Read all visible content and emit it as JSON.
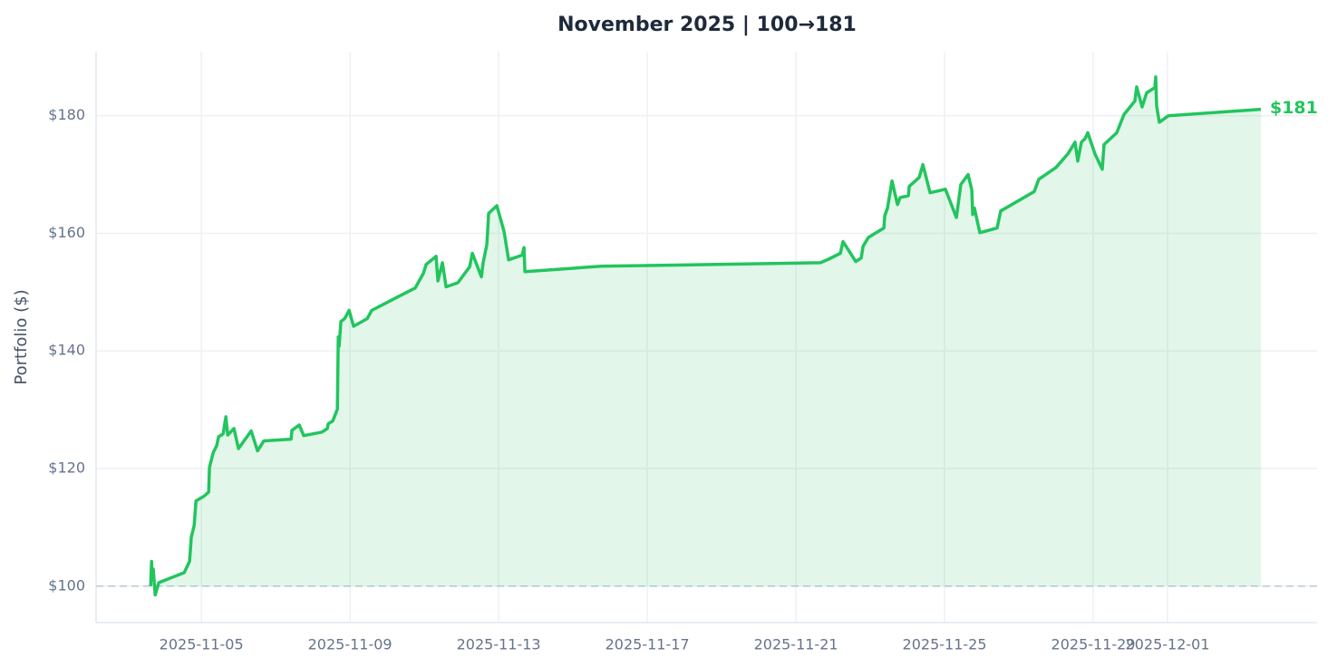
{
  "chart_data": {
    "type": "line",
    "title": "November 2025 | 100→181",
    "y_label": "Portfolio ($)",
    "xlim": [
      "2025-11-02T04:00",
      "2025-12-05T00:35"
    ],
    "xticks": [
      "2025-11-05",
      "2025-11-09",
      "2025-11-13",
      "2025-11-17",
      "2025-11-21",
      "2025-11-25",
      "2025-11-29",
      "2025-12-01"
    ],
    "ylim": [
      93.8,
      190.9
    ],
    "yticks": [
      {
        "value": 100,
        "label": "$100"
      },
      {
        "value": 120,
        "label": "$120"
      },
      {
        "value": 140,
        "label": "$140"
      },
      {
        "value": 160,
        "label": "$160"
      },
      {
        "value": 180,
        "label": "$180"
      }
    ],
    "grid": true,
    "baseline": 100,
    "series": [
      {
        "color": "#22c55e",
        "end_label": "$181",
        "x": [
          "2025-11-03T15:13",
          "2025-11-03T15:48",
          "2025-11-03T16:23",
          "2025-11-03T16:58",
          "2025-11-03T18:09",
          "2025-11-03T20:30",
          "2025-11-04T12:53",
          "2025-11-04T16:23",
          "2025-11-04T17:00",
          "2025-11-04T17:30",
          "2025-11-04T19:19",
          "2025-11-04T20:30",
          "2025-11-05T01:45",
          "2025-11-05T04:41",
          "2025-11-05T05:16",
          "2025-11-05T07:37",
          "2025-11-05T09:57",
          "2025-11-05T11:07",
          "2025-11-05T14:03",
          "2025-11-05T15:49",
          "2025-11-05T16:59",
          "2025-11-05T21:04",
          "2025-11-06T00:00",
          "2025-11-06T08:11",
          "2025-11-06T12:17",
          "2025-11-06T16:23",
          "2025-11-07T09:57",
          "2025-11-07T10:32",
          "2025-11-07T15:13",
          "2025-11-07T18:09",
          "2025-11-08T05:51",
          "2025-11-08T09:22",
          "2025-11-08T09:57",
          "2025-11-08T12:53",
          "2025-11-08T15:49",
          "2025-11-08T16:24",
          "2025-11-08T16:59",
          "2025-11-08T18:09",
          "2025-11-08T20:30",
          "2025-11-08T23:25",
          "2025-11-09T02:21",
          "2025-11-09T11:07",
          "2025-11-09T14:03",
          "2025-11-10T07:37",
          "2025-11-10T18:09",
          "2025-11-10T23:25",
          "2025-11-11T01:10",
          "2025-11-11T07:37",
          "2025-11-11T08:47",
          "2025-11-11T11:42",
          "2025-11-11T14:03",
          "2025-11-11T21:39",
          "2025-11-12T05:16",
          "2025-11-12T07:01",
          "2025-11-12T12:53",
          "2025-11-12T13:59",
          "2025-11-12T16:23",
          "2025-11-12T17:34",
          "2025-11-12T22:49",
          "2025-11-13T03:30",
          "2025-11-13T06:25",
          "2025-11-13T15:13",
          "2025-11-13T16:23",
          "2025-11-13T16:59",
          "2025-11-15T18:09",
          "2025-11-21T15:49",
          "2025-11-21T21:04",
          "2025-11-22T04:41",
          "2025-11-22T06:25",
          "2025-11-22T14:38",
          "2025-11-22T18:09",
          "2025-11-22T19:19",
          "2025-11-22T22:49",
          "2025-11-23T08:47",
          "2025-11-23T09:22",
          "2025-11-23T11:07",
          "2025-11-23T14:03",
          "2025-11-23T17:34",
          "2025-11-23T19:19",
          "2025-11-24T00:35",
          "2025-11-24T01:10",
          "2025-11-24T07:37",
          "2025-11-24T09:57",
          "2025-11-24T14:38",
          "2025-11-25T00:35",
          "2025-11-25T07:37",
          "2025-11-25T10:32",
          "2025-11-25T15:13",
          "2025-11-25T17:34",
          "2025-11-25T18:09",
          "2025-11-25T19:19",
          "2025-11-25T22:49",
          "2025-11-26T09:57",
          "2025-11-26T12:17",
          "2025-11-27T09:57",
          "2025-11-27T12:53",
          "2025-11-28T00:00",
          "2025-11-28T07:37",
          "2025-11-28T12:17",
          "2025-11-28T14:03",
          "2025-11-28T16:23",
          "2025-11-28T18:43",
          "2025-11-28T20:30",
          "2025-11-29T01:10",
          "2025-11-29T05:51",
          "2025-11-29T07:01",
          "2025-11-29T15:13",
          "2025-11-29T19:54",
          "2025-11-30T02:55",
          "2025-11-30T04:05",
          "2025-11-30T07:37",
          "2025-11-30T10:32",
          "2025-11-30T15:49",
          "2025-11-30T16:24",
          "2025-11-30T16:59",
          "2025-11-30T18:43",
          "2025-12-01T00:35",
          "2025-12-03T12:17"
        ],
        "values": [
          100,
          104.2,
          101.1,
          102.9,
          98.5,
          100.6,
          102.3,
          104.2,
          106.5,
          108.3,
          110.3,
          114.5,
          115.3,
          116.0,
          120.2,
          122.7,
          123.9,
          125.4,
          125.9,
          128.8,
          125.7,
          126.8,
          123.4,
          126.4,
          123.0,
          124.7,
          125.0,
          126.5,
          127.4,
          125.6,
          126.2,
          126.8,
          127.6,
          128.1,
          130.1,
          142.4,
          140.8,
          145.0,
          145.5,
          146.9,
          144.2,
          145.5,
          146.9,
          149.3,
          150.7,
          153.2,
          154.7,
          156.1,
          151.9,
          155.0,
          150.9,
          151.6,
          154.3,
          156.6,
          152.6,
          155.0,
          158.1,
          163.4,
          164.7,
          160.3,
          155.5,
          156.3,
          157.6,
          153.5,
          154.4,
          155.0,
          155.6,
          156.6,
          158.6,
          155.2,
          155.8,
          157.8,
          159.3,
          160.9,
          163.0,
          164.3,
          168.9,
          164.9,
          166.1,
          166.4,
          168.0,
          169.5,
          171.7,
          166.9,
          167.5,
          162.7,
          168.3,
          170.0,
          167.4,
          163.2,
          164.3,
          160.1,
          160.9,
          163.8,
          167.1,
          169.2,
          171.2,
          173.5,
          175.5,
          172.3,
          175.5,
          176.1,
          177.1,
          173.5,
          170.9,
          175.1,
          177.1,
          180.2,
          182.5,
          184.9,
          181.5,
          183.9,
          184.8,
          186.6,
          181.7,
          178.9,
          180.0,
          181.1
        ]
      }
    ]
  }
}
